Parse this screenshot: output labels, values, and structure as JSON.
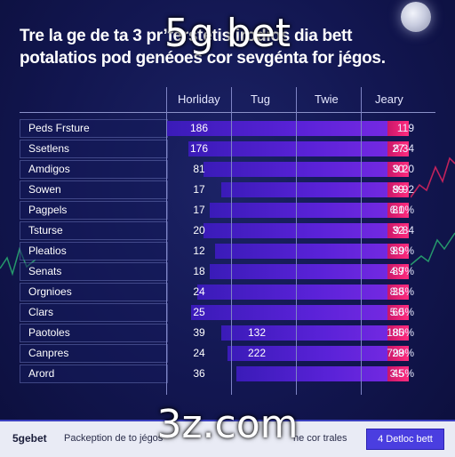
{
  "header": {
    "title_line1": "Tre la ge de ta 3 pr’ferstetis irodios dia bett",
    "title_line2": "potalatios pod genéoes cor sevgénta for jégos."
  },
  "watermarks": {
    "top": "5g bet",
    "bottom": "3z.com"
  },
  "table": {
    "columns": [
      "Horliday",
      "Tug",
      "Twie",
      "Jeary"
    ],
    "rows": [
      {
        "label": "Peds Frsture",
        "v1": "186",
        "v2": "",
        "v3": "",
        "v4": "119",
        "bar": 0.8
      },
      {
        "label": "Ssetlens",
        "v1": "176",
        "v2": "",
        "v3": "27",
        "v4": "8.34",
        "bar": 0.73
      },
      {
        "label": "Amdigos",
        "v1": "81",
        "v2": "",
        "v3": "30",
        "v4": "9.20",
        "bar": 0.68
      },
      {
        "label": "Sowen",
        "v1": "17",
        "v2": "",
        "v3": "89",
        "v4": "9.92",
        "bar": 0.62
      },
      {
        "label": "Pagpels",
        "v1": "17",
        "v2": "",
        "v3": "81",
        "v4": "6.0%",
        "bar": 0.66
      },
      {
        "label": "Tsturse",
        "v1": "20",
        "v2": "",
        "v3": "32",
        "v4": "9.84",
        "bar": 0.68
      },
      {
        "label": "Pleatios",
        "v1": "12",
        "v2": "",
        "v3": "89",
        "v4": "9.9%",
        "bar": 0.64
      },
      {
        "label": "Senats",
        "v1": "18",
        "v2": "",
        "v3": "89",
        "v4": "4.7%",
        "bar": 0.66
      },
      {
        "label": "Orgnioes",
        "v1": "24",
        "v2": "",
        "v3": "38",
        "v4": "8.5%",
        "bar": 0.7
      },
      {
        "label": "Clars",
        "v1": "25",
        "v2": "",
        "v3": "60",
        "v4": "5.5%",
        "bar": 0.72
      },
      {
        "label": "Paotoles",
        "v1": "39",
        "v2": "132",
        "v3": "85",
        "v4": "180%",
        "bar": 0.62
      },
      {
        "label": "Canpres",
        "v1": "24",
        "v2": "222",
        "v3": "28",
        "v4": "799%",
        "bar": 0.6
      },
      {
        "label": "Arord",
        "v1": "36",
        "v2": "",
        "v3": "45",
        "v4": "3.5%",
        "bar": 0.57
      }
    ]
  },
  "footer": {
    "brand": "5gebet",
    "desc": "Packeption de to jégos",
    "desc2": "ne cor trales",
    "button": "4 Detloc bett"
  },
  "colors": {
    "bar_start": "#3a1bb8",
    "bar_end": "#7a2be4",
    "accent": "#ff2c7e",
    "background": "#121650"
  }
}
